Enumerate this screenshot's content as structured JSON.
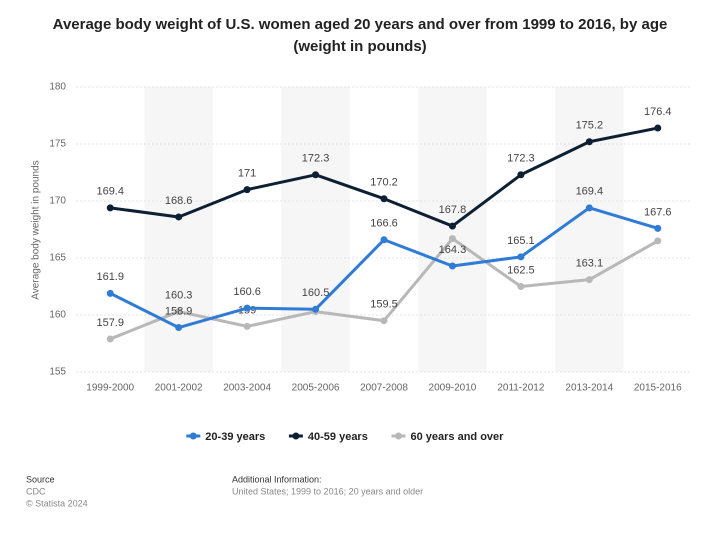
{
  "chart_data": {
    "type": "line",
    "title": "Average body weight of U.S. women aged 20 years and over from 1999 to 2016, by age (weight in pounds)",
    "y_label": "Average body weight in pounds",
    "categories": [
      "1999-2000",
      "2001-2002",
      "2003-2004",
      "2005-2006",
      "2007-2008",
      "2009-2010",
      "2011-2012",
      "2013-2014",
      "2015-2016"
    ],
    "series": [
      {
        "name": "20-39 years",
        "color": "#2f7bd6",
        "values": [
          161.9,
          158.9,
          160.6,
          160.5,
          166.6,
          164.3,
          165.1,
          169.4,
          167.6
        ]
      },
      {
        "name": "40-59 years",
        "color": "#0d2033",
        "values": [
          169.4,
          168.6,
          171,
          172.3,
          170.2,
          167.8,
          172.3,
          175.2,
          176.4
        ]
      },
      {
        "name": "60 years and over",
        "color": "#b8b8b8",
        "values": [
          157.9,
          160.3,
          159,
          160.3,
          159.5,
          166.7,
          162.5,
          163.1,
          166.5
        ],
        "value_labels": [
          "157.9",
          "160.3",
          "159",
          null,
          "159.5",
          null,
          "162.5",
          "163.1",
          null
        ]
      }
    ],
    "ylim": [
      155,
      180
    ],
    "yticks": [
      155,
      160,
      165,
      170,
      175,
      180
    ],
    "grid": true,
    "legend": "bottom",
    "source_title": "Source",
    "source": "CDC",
    "copyright": "© Statista 2024",
    "info_title": "Additional Information:",
    "info": "United States; 1999 to 2016; 20 years and older"
  }
}
